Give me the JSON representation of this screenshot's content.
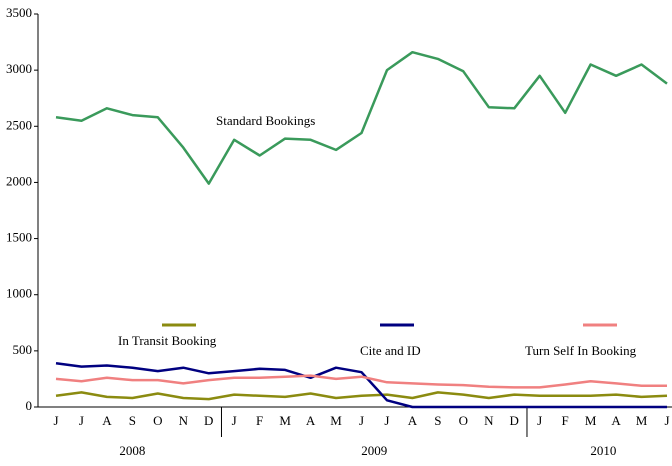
{
  "chart_data": {
    "type": "line",
    "categories": [
      "J",
      "J",
      "A",
      "S",
      "O",
      "N",
      "D",
      "J",
      "F",
      "M",
      "A",
      "M",
      "J",
      "J",
      "A",
      "S",
      "O",
      "N",
      "D",
      "J",
      "F",
      "M",
      "A",
      "M",
      "J"
    ],
    "category_groups": [
      {
        "label": "2008",
        "count": 7
      },
      {
        "label": "2009",
        "count": 12
      },
      {
        "label": "2010",
        "count": 6
      }
    ],
    "series": [
      {
        "name": "Standard Bookings",
        "color": "#3a9a5b",
        "legend": false,
        "values": [
          2580,
          2550,
          2660,
          2600,
          2580,
          2310,
          1990,
          2380,
          2240,
          2390,
          2380,
          2290,
          2440,
          3000,
          3160,
          3100,
          2990,
          2670,
          2660,
          2950,
          2620,
          3050,
          2950,
          3050,
          2880
        ]
      },
      {
        "name": "In Transit Booking",
        "color": "#8b8b10",
        "legend": true,
        "values": [
          100,
          130,
          90,
          80,
          120,
          80,
          70,
          110,
          100,
          90,
          120,
          80,
          100,
          110,
          80,
          130,
          110,
          80,
          110,
          100,
          100,
          100,
          110,
          90,
          100
        ]
      },
      {
        "name": "Cite and ID",
        "color": "#000080",
        "legend": true,
        "values": [
          390,
          360,
          370,
          350,
          320,
          350,
          300,
          320,
          340,
          330,
          260,
          350,
          310,
          60,
          0,
          0,
          0,
          0,
          0,
          0,
          0,
          0,
          0,
          0,
          0
        ]
      },
      {
        "name": "Turn Self In Booking",
        "color": "#f08080",
        "legend": true,
        "values": [
          250,
          230,
          260,
          240,
          240,
          210,
          240,
          260,
          260,
          270,
          280,
          250,
          270,
          220,
          210,
          200,
          195,
          180,
          175,
          175,
          200,
          230,
          210,
          190,
          190
        ]
      }
    ],
    "ylim": [
      0,
      3500
    ],
    "yticks": [
      0,
      500,
      1000,
      1500,
      2000,
      2500,
      3000,
      3500
    ]
  }
}
